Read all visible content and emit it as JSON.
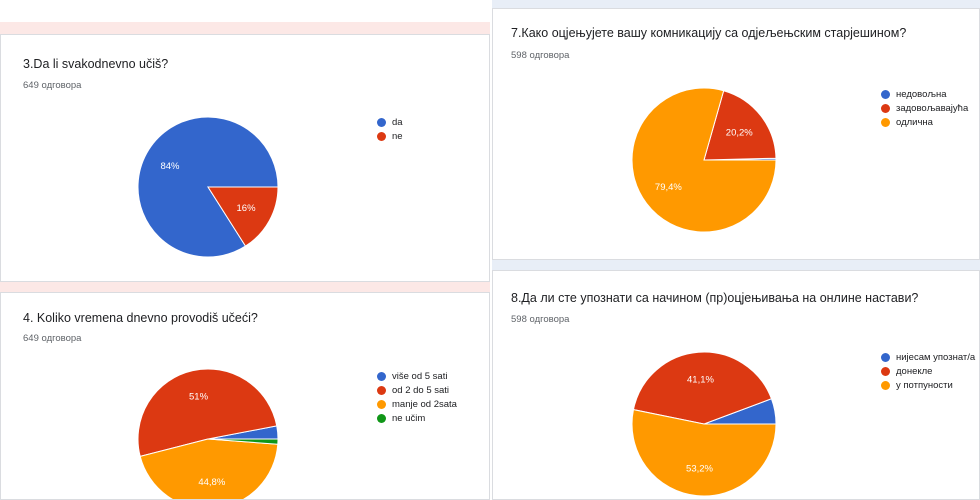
{
  "colors": {
    "blue": "#3366cc",
    "red": "#dc3912",
    "orange": "#ff9900",
    "green": "#109618",
    "divider": "#fce8e6",
    "sep": "#e8eef7"
  },
  "cards": [
    {
      "title": "3.Da li svakodnevno učiš?",
      "count": "649 одговора",
      "chart_data": {
        "type": "pie",
        "series": [
          {
            "name": "da",
            "value": 84,
            "label": "84%",
            "color": "#3366cc"
          },
          {
            "name": "ne",
            "value": 16,
            "label": "16%",
            "color": "#dc3912"
          }
        ]
      }
    },
    {
      "title": "4. Koliko vremena dnevno provodiš učeći?",
      "count": "649 одговора",
      "chart_data": {
        "type": "pie",
        "series": [
          {
            "name": "više od 5 sati",
            "value": 3.0,
            "label": "",
            "color": "#3366cc"
          },
          {
            "name": "od 2 do 5 sati",
            "value": 51,
            "label": "51%",
            "color": "#dc3912"
          },
          {
            "name": "manje od 2sata",
            "value": 44.8,
            "label": "44,8%",
            "color": "#ff9900"
          },
          {
            "name": "ne učim",
            "value": 1.2,
            "label": "",
            "color": "#109618"
          }
        ]
      }
    },
    {
      "title": "7.Како оцјењујете вашу комникацију са одјељењским старјешином?",
      "count": "598 одговора",
      "chart_data": {
        "type": "pie",
        "series": [
          {
            "name": "недовољна",
            "value": 0.4,
            "label": "",
            "color": "#3366cc"
          },
          {
            "name": "задовољавајућа",
            "value": 20.2,
            "label": "20,2%",
            "color": "#dc3912"
          },
          {
            "name": "одлична",
            "value": 79.4,
            "label": "79,4%",
            "color": "#ff9900"
          }
        ]
      }
    },
    {
      "title": "8.Да ли сте упознати са начином (пр)оцјењивања на онлине настави?",
      "count": "598 одговора",
      "chart_data": {
        "type": "pie",
        "series": [
          {
            "name": "нијесам упознат/а",
            "value": 5.7,
            "label": "",
            "color": "#3366cc"
          },
          {
            "name": "донекле",
            "value": 41.1,
            "label": "41,1%",
            "color": "#dc3912"
          },
          {
            "name": "у потпуности",
            "value": 53.2,
            "label": "53,2%",
            "color": "#ff9900"
          }
        ]
      }
    }
  ]
}
